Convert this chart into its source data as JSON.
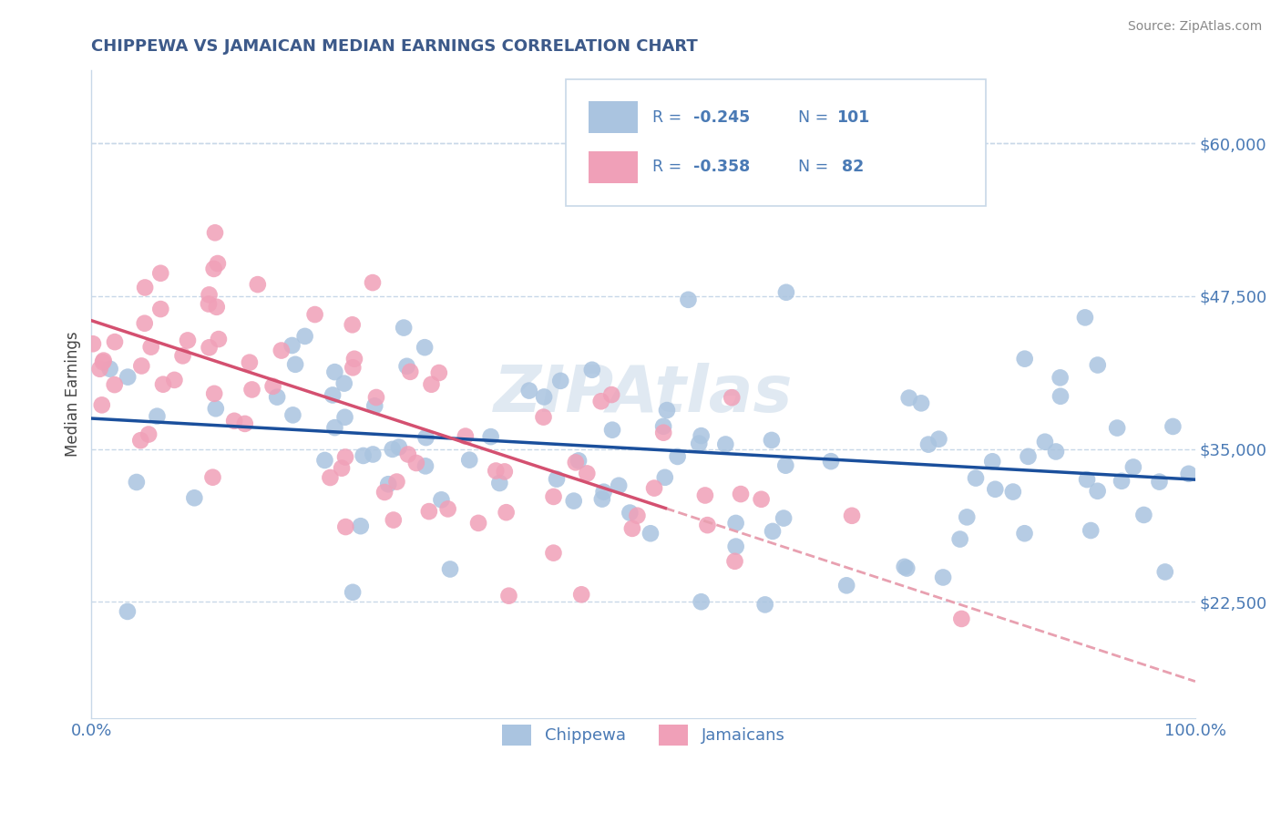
{
  "title": "CHIPPEWA VS JAMAICAN MEDIAN EARNINGS CORRELATION CHART",
  "source_text": "Source: ZipAtlas.com",
  "ylabel": "Median Earnings",
  "xlim": [
    0,
    100
  ],
  "ylim": [
    13000,
    66000
  ],
  "yticks": [
    22500,
    35000,
    47500,
    60000
  ],
  "ytick_labels": [
    "$22,500",
    "$35,000",
    "$47,500",
    "$60,000"
  ],
  "xtick_labels": [
    "0.0%",
    "100.0%"
  ],
  "title_color": "#3d5a8a",
  "title_fontsize": 13,
  "tick_color": "#4a7ab5",
  "watermark_text": "ZIPAtlas",
  "chippewa_color": "#aac4e0",
  "jamaican_color": "#f0a0b8",
  "chippewa_line_color": "#1a4f9c",
  "jamaican_line_color": "#d45070",
  "jamaican_dashed_color": "#e8a0b0",
  "grid_color": "#c8d8e8",
  "chip_line_y0": 37500,
  "chip_line_y100": 32500,
  "jam_line_y0": 45500,
  "jam_line_solid_end_x": 52,
  "jam_line_y100": 16000,
  "jam_dash_start_x": 52
}
